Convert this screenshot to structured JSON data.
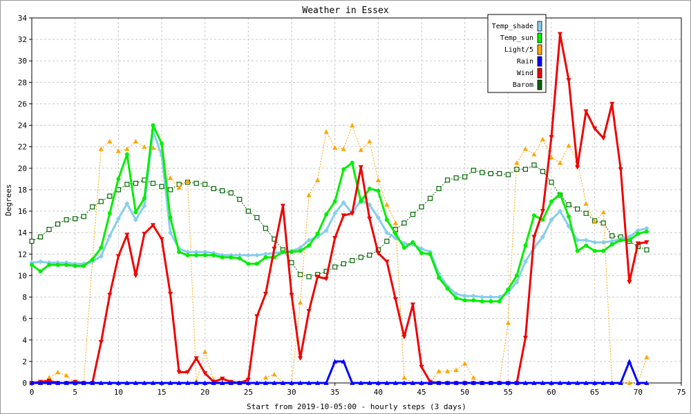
{
  "chart_data": {
    "type": "line",
    "title": "Weather in Essex",
    "xlabel": "Start from 2019-10-05:00 - hourly steps (3 days)",
    "ylabel": "Degrees",
    "xlim": [
      0,
      75
    ],
    "ylim": [
      0,
      34
    ],
    "x_ticks": [
      0,
      5,
      10,
      15,
      20,
      25,
      30,
      35,
      40,
      45,
      50,
      55,
      60,
      65,
      70,
      75
    ],
    "y_ticks": [
      0,
      2,
      4,
      6,
      8,
      10,
      12,
      14,
      16,
      18,
      20,
      22,
      24,
      26,
      28,
      30,
      32,
      34
    ],
    "grid": true,
    "legend_position": "top-right",
    "series": [
      {
        "name": "Temp_shade",
        "color": "#87ceeb",
        "marker": "diamond",
        "values": [
          11.2,
          11.3,
          11.2,
          11.2,
          11.2,
          11.1,
          11.1,
          11.3,
          11.8,
          13.7,
          15.3,
          16.7,
          15.2,
          16.5,
          23.5,
          21.2,
          14.0,
          12.5,
          12.2,
          12.2,
          12.2,
          12.1,
          11.9,
          11.9,
          11.9,
          11.9,
          11.9,
          12.0,
          12.1,
          12.2,
          12.3,
          12.6,
          13.3,
          13.6,
          14.2,
          15.8,
          16.8,
          15.8,
          17.0,
          16.6,
          15.4,
          14.0,
          13.5,
          13.0,
          12.9,
          12.5,
          12.2,
          10.2,
          9.0,
          8.3,
          8.1,
          8.1,
          8.0,
          8.0,
          8.0,
          8.4,
          9.4,
          11.3,
          12.6,
          13.6,
          15.2,
          16.0,
          14.6,
          13.3,
          13.3,
          13.1,
          13.1,
          13.2,
          13.4,
          13.6,
          14.2,
          14.4
        ]
      },
      {
        "name": "Temp_sun",
        "color": "#00ee00",
        "marker": "circle",
        "values": [
          11.0,
          10.4,
          11.0,
          11.0,
          11.0,
          10.9,
          10.9,
          11.5,
          12.6,
          15.8,
          19.0,
          21.3,
          15.9,
          17.2,
          24.0,
          22.3,
          15.4,
          12.2,
          11.9,
          11.9,
          11.9,
          11.9,
          11.7,
          11.7,
          11.6,
          11.1,
          11.1,
          11.7,
          11.7,
          12.2,
          12.2,
          12.3,
          12.8,
          13.9,
          15.7,
          16.9,
          19.9,
          20.5,
          16.9,
          18.1,
          17.9,
          15.2,
          13.9,
          12.6,
          13.1,
          12.1,
          12.0,
          9.8,
          8.8,
          7.9,
          7.7,
          7.7,
          7.6,
          7.6,
          7.6,
          8.7,
          10.0,
          12.8,
          15.6,
          15.2,
          16.9,
          17.6,
          15.5,
          12.3,
          12.8,
          12.3,
          12.3,
          12.9,
          13.3,
          13.3,
          13.9,
          14.1
        ]
      },
      {
        "name": "Light/5",
        "color": "#ffa500",
        "marker": "triangle-up",
        "values": [
          0,
          0,
          0.5,
          1.0,
          0.7,
          0,
          0,
          11.4,
          21.8,
          22.5,
          21.6,
          21.8,
          22.5,
          22.0,
          21.9,
          21.6,
          19.1,
          18.2,
          18.8,
          0.2,
          2.9,
          0.3,
          0,
          0,
          0,
          0,
          0,
          0.5,
          0.8,
          0,
          0,
          7.5,
          17.5,
          18.9,
          23.4,
          21.9,
          21.8,
          24.0,
          21.7,
          22.5,
          18.9,
          16.6,
          14.9,
          0.5,
          0,
          0,
          0,
          1.1,
          1.1,
          1.2,
          1.8,
          0.5,
          0,
          0,
          0,
          5.6,
          20.5,
          21.8,
          21.3,
          22.7,
          21.0,
          20.5,
          22.1,
          20.7,
          16.7,
          15.0,
          15.9,
          0,
          0,
          0,
          0,
          2.4
        ]
      },
      {
        "name": "Rain",
        "color": "#0000ff",
        "marker": "triangle-up",
        "values": [
          0,
          0,
          0,
          0,
          0,
          0,
          0,
          0,
          0,
          0,
          0,
          0,
          0,
          0,
          0,
          0,
          0,
          0,
          0,
          0,
          0,
          0,
          0,
          0,
          0,
          0,
          0,
          0,
          0,
          0,
          0,
          0,
          0,
          0,
          0,
          2.0,
          2.0,
          0,
          0,
          0,
          0,
          0,
          0,
          0,
          0,
          0,
          0,
          0,
          0,
          0,
          0,
          0,
          0,
          0,
          0,
          0,
          0,
          0,
          0,
          0,
          0,
          0,
          0,
          0,
          0,
          0,
          0,
          0,
          0,
          2.0,
          0,
          0
        ]
      },
      {
        "name": "Wind",
        "color": "#ee0000",
        "marker": "triangle-down",
        "values": [
          0,
          0.1,
          0.2,
          0,
          0,
          0.1,
          0,
          0,
          3.8,
          8.2,
          11.8,
          13.8,
          10.0,
          13.9,
          14.7,
          13.4,
          8.3,
          1.0,
          1.0,
          2.3,
          0.9,
          0.1,
          0.4,
          0.1,
          0,
          0.3,
          6.2,
          8.3,
          12.5,
          16.5,
          8.2,
          2.3,
          6.7,
          9.9,
          9.7,
          13.5,
          15.6,
          15.8,
          20.1,
          15.3,
          12.1,
          11.3,
          7.8,
          4.3,
          7.3,
          1.5,
          0.1,
          0,
          0,
          0,
          0,
          0,
          0,
          0,
          0,
          0,
          0,
          4.2,
          13.6,
          16.0,
          22.9,
          32.5,
          28.2,
          20.1,
          25.3,
          23.7,
          22.8,
          26.0,
          19.9,
          9.4,
          13.0,
          13.1
        ]
      },
      {
        "name": "Barom",
        "color": "#006400",
        "marker": "square",
        "values": [
          13.2,
          13.6,
          14.3,
          14.8,
          15.2,
          15.3,
          15.5,
          16.4,
          16.9,
          17.4,
          18.0,
          18.5,
          18.6,
          18.9,
          18.6,
          18.3,
          18.0,
          18.5,
          18.7,
          18.6,
          18.5,
          18.1,
          17.9,
          17.7,
          17.1,
          16.0,
          15.4,
          14.4,
          13.4,
          12.4,
          11.2,
          10.1,
          9.9,
          10.1,
          10.4,
          10.8,
          11.1,
          11.4,
          11.7,
          11.9,
          12.4,
          13.2,
          14.3,
          14.9,
          15.7,
          16.4,
          17.2,
          18.1,
          18.9,
          19.1,
          19.2,
          19.8,
          19.6,
          19.5,
          19.5,
          19.4,
          19.9,
          19.9,
          20.3,
          19.7,
          18.7,
          17.5,
          16.6,
          16.2,
          15.8,
          15.1,
          14.9,
          13.7,
          13.6,
          13.2,
          12.7,
          12.4
        ]
      }
    ]
  }
}
